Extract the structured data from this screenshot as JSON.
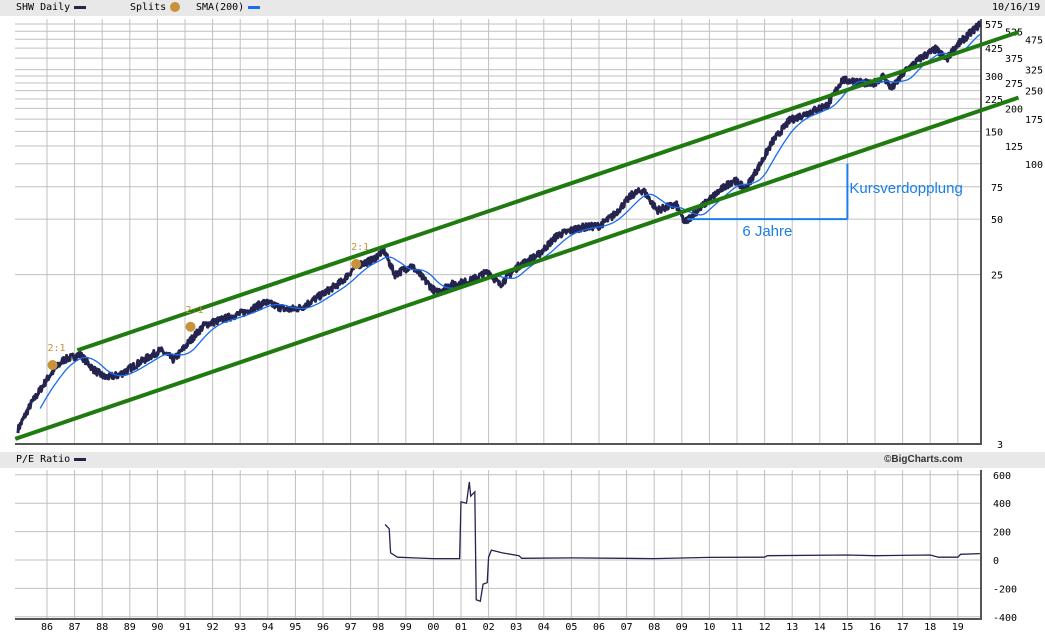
{
  "header": {
    "symbol_label": "SHW Daily",
    "splits_label": "Splits",
    "sma_label": "SMA(200)",
    "date": "10/16/19"
  },
  "pe_header": {
    "label": "P/E Ratio",
    "brand": "©BigCharts.com"
  },
  "colors": {
    "price": "#24244f",
    "sma": "#1a6cf0",
    "channel": "#1f7a10",
    "annotation": "#1a7fe8",
    "split": "#c8913a",
    "grid": "#c0c0c0"
  },
  "chart_data": [
    {
      "type": "line",
      "title": "SHW Daily",
      "yscale": "log",
      "ylim": [
        3,
        575
      ],
      "xlim": [
        1984.84,
        2019.84
      ],
      "y_ticks": [
        575,
        525,
        475,
        425,
        375,
        325,
        300,
        275,
        250,
        225,
        200,
        175,
        150,
        125,
        100,
        75,
        50,
        25,
        3
      ],
      "x_ticks": [
        "86",
        "87",
        "88",
        "89",
        "90",
        "91",
        "92",
        "93",
        "94",
        "95",
        "96",
        "97",
        "98",
        "99",
        "00",
        "01",
        "02",
        "03",
        "04",
        "05",
        "06",
        "07",
        "08",
        "09",
        "10",
        "11",
        "12",
        "13",
        "14",
        "15",
        "16",
        "17",
        "18",
        "19"
      ],
      "grid": true,
      "series": [
        {
          "name": "SHW Daily",
          "points": [
            [
              1984.95,
              3.6
            ],
            [
              1985.4,
              4.9
            ],
            [
              1986.1,
              7.1
            ],
            [
              1986.6,
              8.6
            ],
            [
              1987.2,
              9.2
            ],
            [
              1987.7,
              7.6
            ],
            [
              1988.1,
              6.9
            ],
            [
              1988.6,
              7.1
            ],
            [
              1989.4,
              8.4
            ],
            [
              1990.1,
              9.7
            ],
            [
              1990.6,
              8.6
            ],
            [
              1991.2,
              11.0
            ],
            [
              1991.7,
              13.3
            ],
            [
              1992.5,
              14.5
            ],
            [
              1993.2,
              15.7
            ],
            [
              1993.9,
              17.7
            ],
            [
              1994.7,
              16.1
            ],
            [
              1995.2,
              16.5
            ],
            [
              1995.9,
              19.2
            ],
            [
              1996.7,
              23
            ],
            [
              1997.2,
              28
            ],
            [
              1997.8,
              30
            ],
            [
              1998.2,
              34
            ],
            [
              1998.6,
              25
            ],
            [
              1999.2,
              28
            ],
            [
              2000.1,
              20
            ],
            [
              2000.6,
              22
            ],
            [
              2001.3,
              23
            ],
            [
              2002.0,
              26
            ],
            [
              2002.4,
              22
            ],
            [
              2003.1,
              28
            ],
            [
              2003.8,
              32
            ],
            [
              2004.5,
              41
            ],
            [
              2005.3,
              45
            ],
            [
              2006.0,
              46
            ],
            [
              2006.5,
              52
            ],
            [
              2007.2,
              68
            ],
            [
              2007.6,
              72
            ],
            [
              2008.1,
              56
            ],
            [
              2008.8,
              60
            ],
            [
              2009.1,
              48
            ],
            [
              2009.8,
              60
            ],
            [
              2010.4,
              72
            ],
            [
              2010.9,
              82
            ],
            [
              2011.3,
              73
            ],
            [
              2011.8,
              97
            ],
            [
              2012.3,
              133
            ],
            [
              2012.9,
              172
            ],
            [
              2013.6,
              190
            ],
            [
              2014.3,
              210
            ],
            [
              2014.8,
              285
            ],
            [
              2015.4,
              280
            ],
            [
              2015.9,
              270
            ],
            [
              2016.3,
              300
            ],
            [
              2016.6,
              255
            ],
            [
              2017.1,
              320
            ],
            [
              2017.7,
              380
            ],
            [
              2018.2,
              420
            ],
            [
              2018.6,
              370
            ],
            [
              2018.9,
              430
            ],
            [
              2019.8,
              575
            ]
          ]
        },
        {
          "name": "SMA(200)",
          "derived_from": "SHW Daily"
        }
      ],
      "channel_lines": [
        {
          "name": "upper-channel",
          "from": [
            1987.1,
            9.7
          ],
          "to": [
            2021.2,
            520
          ]
        },
        {
          "name": "lower-channel",
          "from": [
            1984.85,
            3.2
          ],
          "to": [
            2021.2,
            229
          ]
        }
      ],
      "annotations": {
        "horizontal": {
          "from": [
            2009.2,
            50
          ],
          "to": [
            2015.0,
            50
          ],
          "label": "6 Jahre"
        },
        "vertical": {
          "from": [
            2015.0,
            50
          ],
          "to": [
            2015.0,
            100
          ],
          "label": "Kursverdopplung"
        }
      },
      "splits": [
        {
          "year": 1986.2,
          "price": 9.6,
          "label": "2:1"
        },
        {
          "year": 1991.2,
          "price": 15.5,
          "label": "2:1"
        },
        {
          "year": 1997.2,
          "price": 34,
          "label": "2:1"
        }
      ]
    },
    {
      "type": "line",
      "title": "P/E Ratio",
      "ylim": [
        -400,
        600
      ],
      "y_ticks": [
        600,
        400,
        200,
        0,
        -200,
        -400
      ],
      "series": [
        {
          "name": "P/E Ratio",
          "points": [
            [
              1998.25,
              250
            ],
            [
              1998.4,
              220
            ],
            [
              1998.45,
              50
            ],
            [
              1998.7,
              20
            ],
            [
              1999.3,
              15
            ],
            [
              2000.0,
              10
            ],
            [
              2000.95,
              10
            ],
            [
              2001.0,
              410
            ],
            [
              2001.2,
              400
            ],
            [
              2001.3,
              550
            ],
            [
              2001.35,
              450
            ],
            [
              2001.5,
              480
            ],
            [
              2001.55,
              -280
            ],
            [
              2001.7,
              -290
            ],
            [
              2001.8,
              -170
            ],
            [
              2001.95,
              -160
            ],
            [
              2002.0,
              20
            ],
            [
              2002.1,
              70
            ],
            [
              2002.5,
              50
            ],
            [
              2003.1,
              30
            ],
            [
              2003.2,
              12
            ],
            [
              2005.0,
              15
            ],
            [
              2008.0,
              10
            ],
            [
              2010.0,
              18
            ],
            [
              2012.0,
              20
            ],
            [
              2012.1,
              30
            ],
            [
              2015.0,
              35
            ],
            [
              2016.0,
              30
            ],
            [
              2018.0,
              35
            ],
            [
              2018.3,
              20
            ],
            [
              2019.0,
              20
            ],
            [
              2019.1,
              40
            ],
            [
              2019.8,
              45
            ]
          ]
        }
      ]
    }
  ]
}
